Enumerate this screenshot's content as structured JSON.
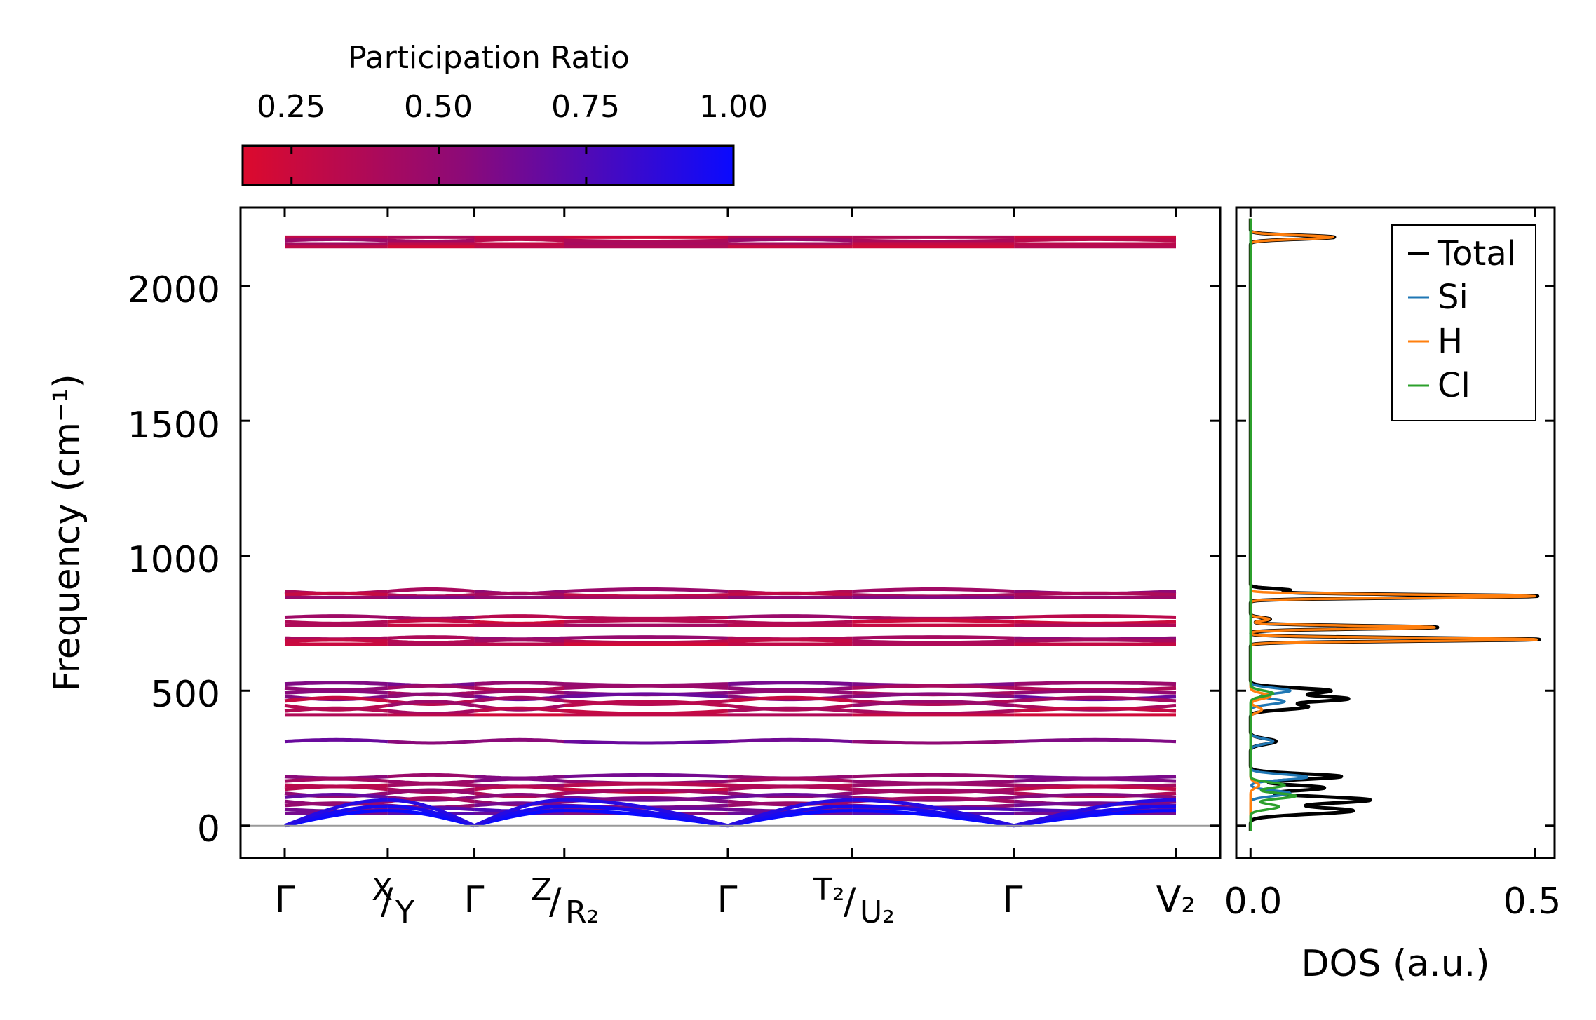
{
  "colorbar": {
    "title": "Participation Ratio",
    "tick_labels": [
      "0.25",
      "0.50",
      "0.75",
      "1.00"
    ],
    "ticks": [
      0.25,
      0.5,
      0.75,
      1.0
    ],
    "range": [
      0.167,
      1.0
    ],
    "color_low": "#dc0a2d",
    "color_mid": "#8c0a78",
    "color_high": "#0a0aff"
  },
  "chart_data": [
    {
      "type": "line",
      "name": "phonon-band-structure",
      "ylabel": "Frequency (cm⁻¹)",
      "ylim": [
        -120,
        2290
      ],
      "yticks": [
        0,
        500,
        1000,
        1500,
        2000
      ],
      "ytick_labels": [
        "0",
        "500",
        "1000",
        "1500",
        "2000"
      ],
      "kpath": [
        {
          "label": "Γ",
          "x": 0
        },
        {
          "label_top": "X",
          "label_bottom": "Y",
          "x": 0.63
        },
        {
          "label": "Γ",
          "x": 1.16
        },
        {
          "label_top": "Z",
          "label_bottom": "R₂",
          "x": 1.71
        },
        {
          "label": "Γ",
          "x": 2.71
        },
        {
          "label_top": "T₂",
          "label_bottom": "U₂",
          "x": 3.47
        },
        {
          "label": "Γ",
          "x": 4.46
        },
        {
          "label": "V₂",
          "x": 5.45
        }
      ],
      "segments": [
        [
          0,
          0.63
        ],
        [
          0.63,
          1.16
        ],
        [
          1.16,
          1.71
        ],
        [
          1.71,
          2.71
        ],
        [
          2.71,
          3.47
        ],
        [
          3.47,
          4.46
        ],
        [
          4.46,
          5.45
        ]
      ],
      "bands": [
        {
          "freq": 2180,
          "amp": 0,
          "pr": 0.3
        },
        {
          "freq": 2168,
          "amp": 4,
          "pr": 0.4
        },
        {
          "freq": 2155,
          "amp": 0,
          "pr": 0.35
        },
        {
          "freq": 2145,
          "amp": 0,
          "pr": 0.3
        },
        {
          "freq": 868,
          "amp": 8,
          "pr": 0.45
        },
        {
          "freq": 855,
          "amp": 6,
          "pr": 0.35
        },
        {
          "freq": 845,
          "amp": 0,
          "pr": 0.5
        },
        {
          "freq": 772,
          "amp": 5,
          "pr": 0.4
        },
        {
          "freq": 755,
          "amp": 6,
          "pr": 0.3
        },
        {
          "freq": 742,
          "amp": 0,
          "pr": 0.35
        },
        {
          "freq": 695,
          "amp": 4,
          "pr": 0.45
        },
        {
          "freq": 683,
          "amp": 5,
          "pr": 0.35
        },
        {
          "freq": 672,
          "amp": 0,
          "pr": 0.3
        },
        {
          "freq": 525,
          "amp": 5,
          "pr": 0.55
        },
        {
          "freq": 510,
          "amp": 8,
          "pr": 0.45
        },
        {
          "freq": 492,
          "amp": 6,
          "pr": 0.5
        },
        {
          "freq": 478,
          "amp": 10,
          "pr": 0.6
        },
        {
          "freq": 462,
          "amp": 12,
          "pr": 0.35
        },
        {
          "freq": 445,
          "amp": 15,
          "pr": 0.4
        },
        {
          "freq": 425,
          "amp": 10,
          "pr": 0.35
        },
        {
          "freq": 410,
          "amp": 0,
          "pr": 0.3
        },
        {
          "freq": 312,
          "amp": 6,
          "pr": 0.6
        },
        {
          "freq": 182,
          "amp": 6,
          "pr": 0.55
        },
        {
          "freq": 165,
          "amp": 8,
          "pr": 0.5
        },
        {
          "freq": 150,
          "amp": 5,
          "pr": 0.4
        },
        {
          "freq": 135,
          "amp": 10,
          "pr": 0.35
        },
        {
          "freq": 120,
          "amp": 12,
          "pr": 0.45
        },
        {
          "freq": 105,
          "amp": 10,
          "pr": 0.6
        },
        {
          "freq": 90,
          "amp": 12,
          "pr": 0.5
        },
        {
          "freq": 75,
          "amp": 8,
          "pr": 0.55
        },
        {
          "freq": 60,
          "amp": 6,
          "pr": 0.7
        },
        {
          "freq": 45,
          "amp": 0,
          "pr": 0.65
        }
      ],
      "acoustic_bands": [
        {
          "max": 55,
          "pr": 1.0
        },
        {
          "max": 72,
          "pr": 0.95
        },
        {
          "max": 95,
          "pr": 0.9
        }
      ],
      "gamma_points": [
        0,
        1.16,
        2.71,
        4.46
      ]
    },
    {
      "type": "line",
      "name": "density-of-states",
      "xlabel": "DOS (a.u.)",
      "xlim": [
        -0.025,
        0.535
      ],
      "xticks": [
        0,
        0.5
      ],
      "xtick_labels": [
        "0.0",
        "0.5"
      ],
      "legend_position": "top-right",
      "series": [
        {
          "name": "Total",
          "color": "#000000",
          "peaks": [
            [
              2180,
              0.148,
              7
            ],
            [
              872,
              0.07,
              6
            ],
            [
              850,
              0.505,
              6
            ],
            [
              765,
              0.035,
              6
            ],
            [
              735,
              0.33,
              6
            ],
            [
              690,
              0.51,
              6
            ],
            [
              500,
              0.14,
              10
            ],
            [
              470,
              0.17,
              10
            ],
            [
              440,
              0.1,
              10
            ],
            [
              312,
              0.045,
              10
            ],
            [
              182,
              0.16,
              10
            ],
            [
              140,
              0.13,
              10
            ],
            [
              95,
              0.21,
              12
            ],
            [
              55,
              0.18,
              12
            ]
          ]
        },
        {
          "name": "Si",
          "color": "#1f77b4",
          "peaks": [
            [
              500,
              0.07,
              10
            ],
            [
              460,
              0.06,
              10
            ],
            [
              312,
              0.04,
              10
            ],
            [
              180,
              0.1,
              10
            ],
            [
              120,
              0.07,
              10
            ]
          ]
        },
        {
          "name": "H",
          "color": "#ff7f0e",
          "peaks": [
            [
              2180,
              0.145,
              7
            ],
            [
              850,
              0.5,
              6
            ],
            [
              765,
              0.033,
              6
            ],
            [
              735,
              0.325,
              6
            ],
            [
              690,
              0.505,
              6
            ],
            [
              480,
              0.035,
              10
            ],
            [
              430,
              0.02,
              10
            ],
            [
              150,
              0.015,
              10
            ]
          ]
        },
        {
          "name": "Cl",
          "color": "#2ca02c",
          "peaks": [
            [
              490,
              0.04,
              10
            ],
            [
              150,
              0.06,
              10
            ],
            [
              110,
              0.08,
              10
            ],
            [
              70,
              0.05,
              10
            ]
          ]
        }
      ]
    }
  ]
}
